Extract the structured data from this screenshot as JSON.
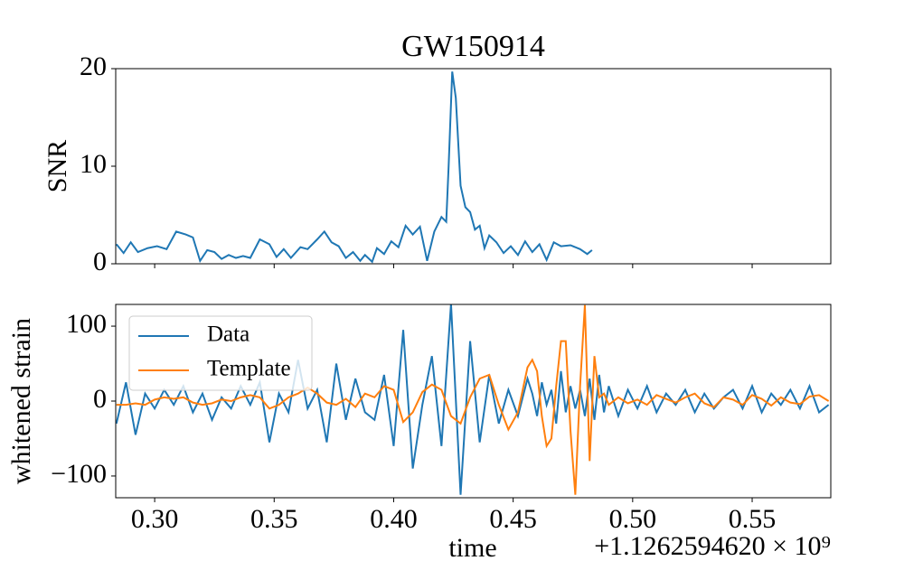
{
  "chart_data": [
    {
      "type": "line",
      "title": "GW150914",
      "ylabel": "SNR",
      "x": [
        0.284,
        0.287,
        0.29,
        0.293,
        0.297,
        0.301,
        0.305,
        0.309,
        0.313,
        0.316,
        0.319,
        0.322,
        0.325,
        0.328,
        0.331,
        0.334,
        0.337,
        0.34,
        0.344,
        0.348,
        0.351,
        0.354,
        0.357,
        0.361,
        0.364,
        0.368,
        0.371,
        0.374,
        0.377,
        0.38,
        0.383,
        0.386,
        0.388,
        0.391,
        0.393,
        0.396,
        0.399,
        0.402,
        0.405,
        0.408,
        0.411,
        0.414,
        0.417,
        0.42,
        0.422,
        0.423,
        0.4245,
        0.426,
        0.428,
        0.43,
        0.432,
        0.434,
        0.436,
        0.438,
        0.44,
        0.443,
        0.446,
        0.449,
        0.452,
        0.455,
        0.458,
        0.461,
        0.464,
        0.467,
        0.47,
        0.474,
        0.478,
        0.481,
        0.483
      ],
      "series": [
        {
          "name": "SNR",
          "color": "#1f77b4",
          "values": [
            2.0,
            1.1,
            2.2,
            1.2,
            1.6,
            1.8,
            1.5,
            3.3,
            3.0,
            2.7,
            0.3,
            1.4,
            1.2,
            0.5,
            0.9,
            0.6,
            0.8,
            0.6,
            2.5,
            2.0,
            0.7,
            1.5,
            0.6,
            1.7,
            1.5,
            2.5,
            3.3,
            2.2,
            1.8,
            0.6,
            1.2,
            0.3,
            0.9,
            0.2,
            1.6,
            1.0,
            2.3,
            1.7,
            3.9,
            3.0,
            3.8,
            0.3,
            3.3,
            4.8,
            4.3,
            10.0,
            19.7,
            17,
            8,
            5.8,
            5.3,
            3.5,
            3.9,
            1.6,
            2.9,
            2.2,
            1.1,
            1.8,
            0.9,
            2.3,
            1.2,
            2.0,
            0.4,
            2.2,
            1.8,
            1.9,
            1.5,
            1.0,
            1.4
          ]
        }
      ],
      "xlim": [
        0.2837,
        0.5829
      ],
      "xticks": [
        0.3,
        0.35,
        0.4,
        0.45,
        0.5,
        0.55
      ],
      "ylim": [
        0,
        20
      ],
      "yticks": [
        0,
        10,
        20
      ]
    },
    {
      "type": "line",
      "ylabel": "whitened strain",
      "xlabel": "time",
      "offset_text": "+1.1262594620 × 10⁹",
      "legend": "upper left",
      "x": [
        0.284,
        0.288,
        0.292,
        0.296,
        0.3,
        0.304,
        0.308,
        0.312,
        0.316,
        0.32,
        0.324,
        0.328,
        0.332,
        0.336,
        0.34,
        0.344,
        0.348,
        0.352,
        0.356,
        0.36,
        0.364,
        0.368,
        0.372,
        0.376,
        0.38,
        0.384,
        0.388,
        0.392,
        0.396,
        0.4,
        0.404,
        0.408,
        0.412,
        0.416,
        0.42,
        0.424,
        0.428,
        0.432,
        0.436,
        0.44,
        0.444,
        0.448,
        0.452,
        0.456,
        0.458,
        0.46,
        0.462,
        0.464,
        0.466,
        0.468,
        0.47,
        0.472,
        0.474,
        0.476,
        0.478,
        0.48,
        0.482,
        0.484,
        0.486,
        0.488,
        0.49,
        0.494,
        0.498,
        0.502,
        0.506,
        0.51,
        0.514,
        0.518,
        0.522,
        0.526,
        0.53,
        0.534,
        0.538,
        0.542,
        0.546,
        0.55,
        0.554,
        0.558,
        0.562,
        0.566,
        0.57,
        0.574,
        0.578,
        0.582
      ],
      "series": [
        {
          "name": "Data",
          "color": "#1f77b4",
          "values": [
            -30,
            25,
            -45,
            10,
            -10,
            15,
            -5,
            20,
            -15,
            10,
            -25,
            5,
            -10,
            20,
            -5,
            25,
            -55,
            10,
            -15,
            55,
            -10,
            15,
            -55,
            50,
            -25,
            30,
            -15,
            -25,
            35,
            -60,
            95,
            -90,
            -5,
            60,
            -60,
            130,
            -125,
            80,
            -55,
            35,
            -30,
            15,
            -20,
            30,
            10,
            -20,
            25,
            -5,
            15,
            -30,
            40,
            -15,
            20,
            -10,
            15,
            -20,
            30,
            -25,
            35,
            -15,
            20,
            -20,
            15,
            -10,
            20,
            -15,
            10,
            -5,
            15,
            -15,
            10,
            -10,
            5,
            15,
            -10,
            20,
            -15,
            10,
            -5,
            15,
            -10,
            20,
            -15,
            -5
          ]
        },
        {
          "name": "Template",
          "color": "#ff7f0e",
          "values": [
            -5,
            -5,
            -3,
            -5,
            2,
            5,
            3,
            5,
            -2,
            -5,
            -3,
            2,
            0,
            5,
            8,
            5,
            -10,
            -5,
            5,
            10,
            18,
            10,
            -2,
            -5,
            3,
            -8,
            10,
            5,
            20,
            15,
            -28,
            -15,
            12,
            22,
            15,
            -20,
            -30,
            5,
            30,
            35,
            -5,
            -38,
            -15,
            45,
            55,
            40,
            -20,
            -60,
            -50,
            20,
            80,
            80,
            -40,
            -125,
            20,
            128,
            -80,
            60,
            5,
            10,
            -5,
            5,
            -3,
            2,
            -5,
            8,
            3,
            -2,
            5,
            10,
            -3,
            -8,
            5,
            2,
            -5,
            8,
            3,
            -6,
            5,
            -2,
            -4,
            6,
            8,
            0
          ]
        }
      ],
      "xlim": [
        0.2837,
        0.5829
      ],
      "xticks": [
        {
          "value": 0.3,
          "label": "0.30"
        },
        {
          "value": 0.35,
          "label": "0.35"
        },
        {
          "value": 0.4,
          "label": "0.40"
        },
        {
          "value": 0.45,
          "label": "0.45"
        },
        {
          "value": 0.5,
          "label": "0.50"
        },
        {
          "value": 0.55,
          "label": "0.55"
        }
      ],
      "ylim": [
        -129,
        129
      ],
      "yticks": [
        {
          "value": -100,
          "label": "−100"
        },
        0,
        100
      ]
    }
  ]
}
